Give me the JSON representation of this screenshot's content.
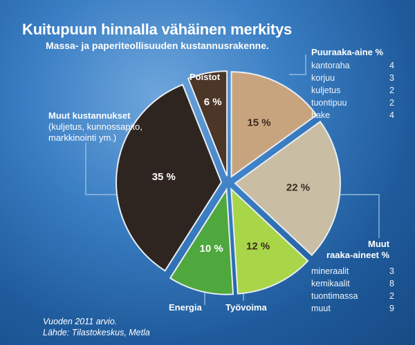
{
  "chart_data": {
    "type": "pie",
    "title": "Kuitupuun hinnalla vähäinen merkitys",
    "subtitle": "Massa- ja paperiteollisuuden kustannusrakenne.",
    "slices": [
      {
        "id": "puuraaka-aine",
        "value": 15,
        "label": "15 %",
        "color": "#c8a47e",
        "name": "Puuraaka-aine %"
      },
      {
        "id": "muut-raaka-aineet",
        "value": 22,
        "label": "22 %",
        "color": "#c9bea4",
        "name": "Muut raaka-aineet %"
      },
      {
        "id": "tyovoima",
        "value": 12,
        "label": "12 %",
        "color": "#a8d648",
        "name": "Työvoima"
      },
      {
        "id": "energia",
        "value": 10,
        "label": "10 %",
        "color": "#4fa83d",
        "name": "Energia"
      },
      {
        "id": "muut-kustannukset",
        "value": 35,
        "label": "35 %",
        "color": "#2e2520",
        "name": "Muut kustannukset"
      },
      {
        "id": "poistot",
        "value": 6,
        "label": "6 %",
        "color": "#4b3628",
        "name": "Poistot"
      }
    ],
    "legend": {
      "puuraaka_aine": {
        "title": "Puuraaka-aine %",
        "items": [
          {
            "name": "kantoraha",
            "value": "4"
          },
          {
            "name": "korjuu",
            "value": "3"
          },
          {
            "name": "kuljetus",
            "value": "2"
          },
          {
            "name": "tuontipuu",
            "value": "2"
          },
          {
            "name": "hake",
            "value": "4"
          }
        ]
      },
      "muut_raaka_aineet": {
        "title_line1": "Muut",
        "title_line2": "raaka-aineet %",
        "items": [
          {
            "name": "mineraalit",
            "value": "3"
          },
          {
            "name": "kemikaalit",
            "value": "8"
          },
          {
            "name": "tuontimassa",
            "value": "2"
          },
          {
            "name": "muut",
            "value": "9"
          }
        ]
      },
      "muut_kustannukset": {
        "title": "Muut kustannukset",
        "note_line1": "(kuljetus, kunnossapito,",
        "note_line2": "markkinointi ym.)"
      },
      "poistot": "Poistot",
      "energia": "Energia",
      "tyovoima": "Työvoima"
    },
    "source_line1": "Vuoden 2011 arvio.",
    "source_line2": "Lähde: Tilastokeskus, Metla"
  },
  "colors": {
    "background": "#2a6db0",
    "leader": "#a9c9e6"
  }
}
